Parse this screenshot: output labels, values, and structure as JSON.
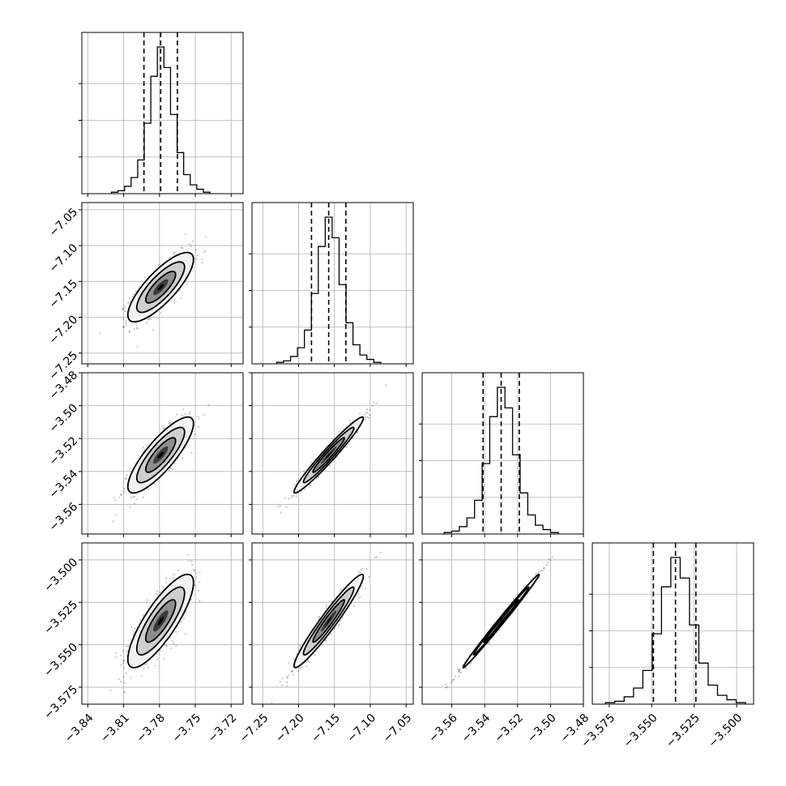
{
  "chart_data": {
    "type": "corner",
    "grid": true,
    "parameters": [
      {
        "ticks": [
          -3.84,
          -3.81,
          -3.78,
          -3.75,
          -3.72
        ],
        "tick_labels": [
          "−3.84",
          "−3.81",
          "−3.78",
          "−3.75",
          "−3.72"
        ],
        "range": [
          -3.845,
          -3.71
        ],
        "quantiles": [
          -3.793,
          -3.779,
          -3.765
        ],
        "mean": -3.779,
        "std": 0.0125,
        "hist_values": [
          1,
          2,
          5,
          11,
          23,
          48,
          80,
          100,
          86,
          54,
          28,
          13,
          6,
          3,
          1
        ]
      },
      {
        "ticks": [
          -7.25,
          -7.2,
          -7.15,
          -7.1,
          -7.05
        ],
        "tick_labels": [
          "−7.25",
          "−7.20",
          "−7.15",
          "−7.10",
          "−7.05"
        ],
        "range": [
          -7.265,
          -7.04
        ],
        "quantiles": [
          -7.182,
          -7.158,
          -7.134
        ],
        "mean": -7.158,
        "std": 0.022,
        "hist_values": [
          1,
          2,
          5,
          11,
          23,
          48,
          80,
          100,
          86,
          54,
          28,
          13,
          6,
          3,
          1
        ]
      },
      {
        "ticks": [
          -3.56,
          -3.54,
          -3.52,
          -3.5,
          -3.48
        ],
        "tick_labels": [
          "−3.56",
          "−3.54",
          "−3.52",
          "−3.50",
          "−3.48"
        ],
        "range": [
          -3.578,
          -3.48
        ],
        "quantiles": [
          -3.541,
          -3.53,
          -3.519
        ],
        "mean": -3.53,
        "std": 0.0105,
        "hist_values": [
          1,
          2,
          5,
          11,
          23,
          48,
          80,
          100,
          86,
          54,
          28,
          13,
          6,
          3,
          1
        ]
      },
      {
        "ticks": [
          -3.575,
          -3.55,
          -3.525,
          -3.5
        ],
        "tick_labels": [
          "−3.575",
          "−3.550",
          "−3.525",
          "−3.500"
        ],
        "range": [
          -3.585,
          -3.49
        ],
        "quantiles": [
          -3.549,
          -3.536,
          -3.524
        ],
        "mean": -3.536,
        "std": 0.0125,
        "hist_values": [
          1,
          2,
          5,
          11,
          23,
          48,
          80,
          100,
          86,
          54,
          28,
          13,
          6,
          3,
          1
        ]
      }
    ],
    "correlations": {
      "1-0": 0.8,
      "2-0": 0.83,
      "2-1": 0.97,
      "3-0": 0.82,
      "3-1": 0.96,
      "3-2": 0.995
    }
  }
}
